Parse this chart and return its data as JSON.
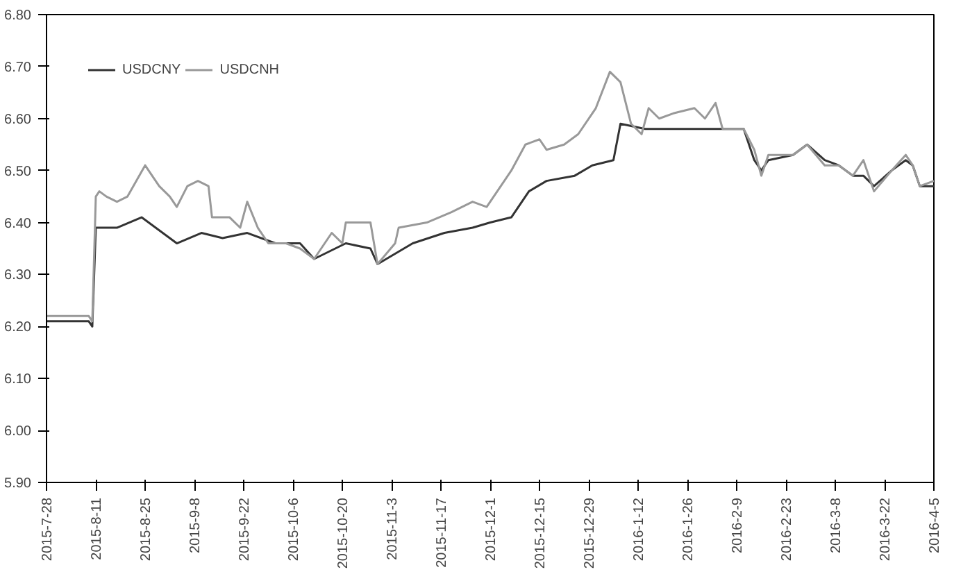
{
  "chart_data": {
    "type": "line",
    "x": [
      "2015-07-28",
      "2015-08-09",
      "2015-08-10",
      "2015-08-11",
      "2015-08-17",
      "2015-08-24",
      "2015-08-28",
      "2015-09-03",
      "2015-09-10",
      "2015-09-16",
      "2015-09-23",
      "2015-10-01",
      "2015-10-08",
      "2015-10-12",
      "2015-10-18",
      "2015-10-21",
      "2015-10-28",
      "2015-10-30",
      "2015-11-04",
      "2015-11-09",
      "2015-11-18",
      "2015-11-26",
      "2015-12-01",
      "2015-12-07",
      "2015-12-12",
      "2015-12-17",
      "2015-12-25",
      "2015-12-30",
      "2016-01-05",
      "2016-01-07",
      "2016-01-14",
      "2016-02-11",
      "2016-02-14",
      "2016-02-16",
      "2016-02-18",
      "2016-02-25",
      "2016-02-29",
      "2016-03-05",
      "2016-03-09",
      "2016-03-13",
      "2016-03-16",
      "2016-03-19",
      "2016-03-24",
      "2016-03-28",
      "2016-03-30",
      "2016-04-01",
      "2016-04-05"
    ],
    "series": [
      {
        "name": "USDCNY",
        "color": "#333333",
        "values": [
          6.21,
          6.21,
          6.2,
          6.39,
          6.39,
          6.41,
          6.39,
          6.36,
          6.38,
          6.37,
          6.38,
          6.36,
          6.36,
          6.33,
          6.35,
          6.36,
          6.35,
          6.32,
          6.34,
          6.36,
          6.38,
          6.39,
          6.4,
          6.41,
          6.46,
          6.48,
          6.49,
          6.51,
          6.52,
          6.59,
          6.58,
          6.58,
          6.52,
          6.5,
          6.52,
          6.53,
          6.55,
          6.52,
          6.51,
          6.49,
          6.49,
          6.47,
          6.5,
          6.52,
          6.51,
          6.47,
          6.47
        ]
      },
      {
        "name": "USDCNH",
        "color": "#999999",
        "x": [
          "2015-07-28",
          "2015-08-09",
          "2015-08-10",
          "2015-08-11",
          "2015-08-12",
          "2015-08-14",
          "2015-08-17",
          "2015-08-20",
          "2015-08-25",
          "2015-08-29",
          "2015-09-01",
          "2015-09-03",
          "2015-09-06",
          "2015-09-09",
          "2015-09-12",
          "2015-09-13",
          "2015-09-18",
          "2015-09-21",
          "2015-09-23",
          "2015-09-26",
          "2015-09-29",
          "2015-10-04",
          "2015-10-08",
          "2015-10-12",
          "2015-10-17",
          "2015-10-20",
          "2015-10-21",
          "2015-10-28",
          "2015-10-30",
          "2015-11-04",
          "2015-11-05",
          "2015-11-13",
          "2015-11-20",
          "2015-11-26",
          "2015-11-30",
          "2015-12-02",
          "2015-12-07",
          "2015-12-11",
          "2015-12-15",
          "2015-12-17",
          "2015-12-22",
          "2015-12-26",
          "2015-12-31",
          "2016-01-04",
          "2016-01-07",
          "2016-01-10",
          "2016-01-13",
          "2016-01-15",
          "2016-01-18",
          "2016-01-22",
          "2016-01-28",
          "2016-01-31",
          "2016-02-03",
          "2016-02-05",
          "2016-02-11",
          "2016-02-14",
          "2016-02-16",
          "2016-02-18",
          "2016-02-25",
          "2016-02-29",
          "2016-03-05",
          "2016-03-09",
          "2016-03-13",
          "2016-03-16",
          "2016-03-19",
          "2016-03-24",
          "2016-03-28",
          "2016-03-30",
          "2016-04-01",
          "2016-04-05"
        ],
        "values": [
          6.22,
          6.22,
          6.21,
          6.45,
          6.46,
          6.45,
          6.44,
          6.45,
          6.51,
          6.47,
          6.45,
          6.43,
          6.47,
          6.48,
          6.47,
          6.41,
          6.41,
          6.39,
          6.44,
          6.39,
          6.36,
          6.36,
          6.35,
          6.33,
          6.38,
          6.36,
          6.4,
          6.4,
          6.32,
          6.36,
          6.39,
          6.4,
          6.42,
          6.44,
          6.43,
          6.45,
          6.5,
          6.55,
          6.56,
          6.54,
          6.55,
          6.57,
          6.62,
          6.69,
          6.67,
          6.59,
          6.57,
          6.62,
          6.6,
          6.61,
          6.62,
          6.6,
          6.63,
          6.58,
          6.58,
          6.54,
          6.49,
          6.53,
          6.53,
          6.55,
          6.51,
          6.51,
          6.49,
          6.52,
          6.46,
          6.5,
          6.53,
          6.51,
          6.47,
          6.48
        ]
      }
    ],
    "xlim": [
      "2015-07-28",
      "2016-04-05"
    ],
    "xticks": [
      {
        "value": "2015-07-28",
        "label": "2015-7-28"
      },
      {
        "value": "2015-08-11",
        "label": "2015-8-11"
      },
      {
        "value": "2015-08-25",
        "label": "2015-8-25"
      },
      {
        "value": "2015-09-08",
        "label": "2015-9-8"
      },
      {
        "value": "2015-09-22",
        "label": "2015-9-22"
      },
      {
        "value": "2015-10-06",
        "label": "2015-10-6"
      },
      {
        "value": "2015-10-20",
        "label": "2015-10-20"
      },
      {
        "value": "2015-11-03",
        "label": "2015-11-3"
      },
      {
        "value": "2015-11-17",
        "label": "2015-11-17"
      },
      {
        "value": "2015-12-01",
        "label": "2015-12-1"
      },
      {
        "value": "2015-12-15",
        "label": "2015-12-15"
      },
      {
        "value": "2015-12-29",
        "label": "2015-12-29"
      },
      {
        "value": "2016-01-12",
        "label": "2016-1-12"
      },
      {
        "value": "2016-01-26",
        "label": "2016-1-26"
      },
      {
        "value": "2016-02-09",
        "label": "2016-2-9"
      },
      {
        "value": "2016-02-23",
        "label": "2016-2-23"
      },
      {
        "value": "2016-03-08",
        "label": "2016-3-8"
      },
      {
        "value": "2016-03-22",
        "label": "2016-3-22"
      },
      {
        "value": "2016-04-05",
        "label": "2016-4-5"
      }
    ],
    "ylim": [
      5.9,
      6.8
    ],
    "yticks": [
      {
        "value": 5.9,
        "label": "5.90"
      },
      {
        "value": 6.0,
        "label": "6.00"
      },
      {
        "value": 6.1,
        "label": "6.10"
      },
      {
        "value": 6.2,
        "label": "6.20"
      },
      {
        "value": 6.3,
        "label": "6.30"
      },
      {
        "value": 6.4,
        "label": "6.40"
      },
      {
        "value": 6.5,
        "label": "6.50"
      },
      {
        "value": 6.6,
        "label": "6.60"
      },
      {
        "value": 6.7,
        "label": "6.70"
      },
      {
        "value": 6.8,
        "label": "6.80"
      }
    ],
    "grid": false,
    "legend": "top left"
  }
}
